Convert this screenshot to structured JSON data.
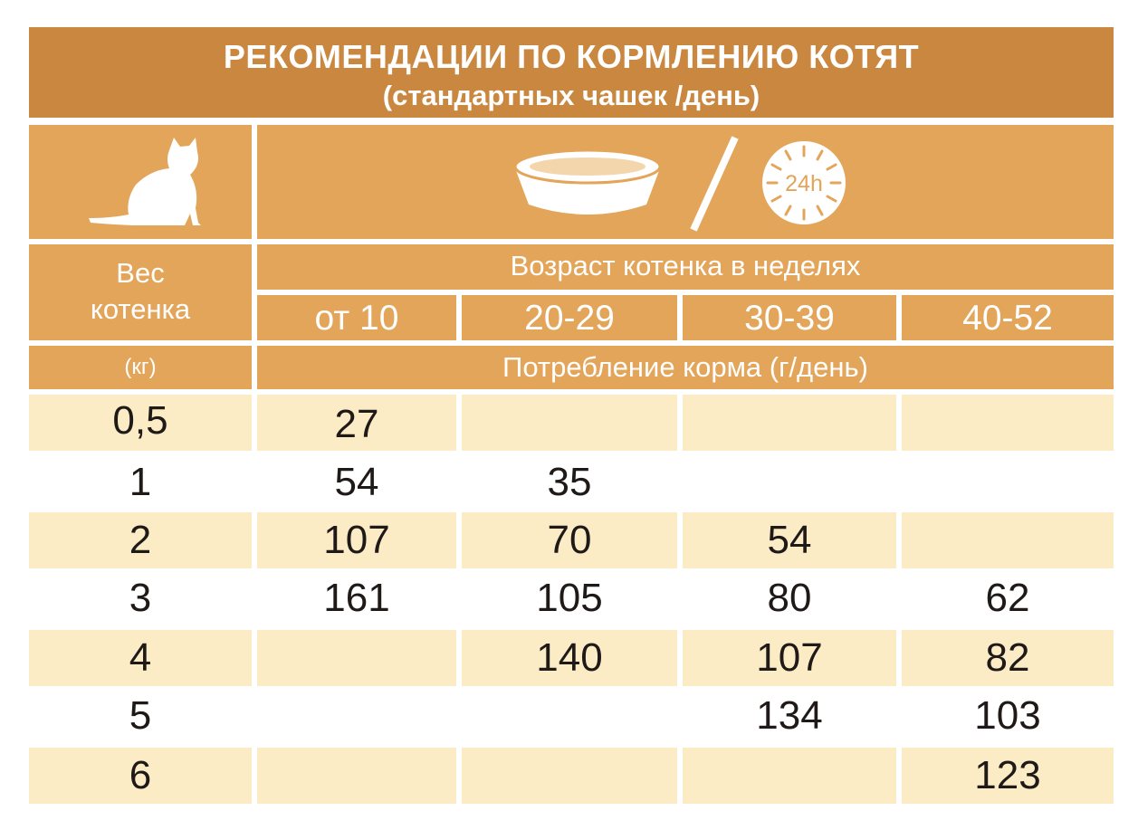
{
  "title": {
    "line1": "РЕКОМЕНДАЦИИ ПО КОРМЛЕНИЮ КОТЯТ",
    "line2": "(стандартных чашек /день)"
  },
  "icons": [
    "cat-silhouette-icon",
    "food-bowl-icon",
    "clock-24h-icon"
  ],
  "clock_label": "24h",
  "header": {
    "weight_label_line1": "Вес",
    "weight_label_line2": "котенка",
    "weight_unit": "(кг)",
    "age_label": "Возраст котенка в неделях",
    "age_groups": [
      "от 10",
      "20-29",
      "30-39",
      "40-52"
    ],
    "consumption_label": "Потребление корма (г/день)"
  },
  "rows": [
    {
      "weight": "0,5",
      "values": [
        "27",
        "",
        "",
        ""
      ]
    },
    {
      "weight": "1",
      "values": [
        "54",
        "35",
        "",
        ""
      ]
    },
    {
      "weight": "2",
      "values": [
        "107",
        "70",
        "54",
        ""
      ]
    },
    {
      "weight": "3",
      "values": [
        "161",
        "105",
        "80",
        "62"
      ]
    },
    {
      "weight": "4",
      "values": [
        "",
        "140",
        "107",
        "82"
      ]
    },
    {
      "weight": "5",
      "values": [
        "",
        "",
        "134",
        "103"
      ]
    },
    {
      "weight": "6",
      "values": [
        "",
        "",
        "",
        "123"
      ]
    }
  ],
  "colors": {
    "title_bg": "#c9873f",
    "header_bg": "#e3a55a",
    "stripe_bg": "#fbecc6",
    "text_dark": "#1f1a17",
    "text_light": "#ffffff"
  }
}
